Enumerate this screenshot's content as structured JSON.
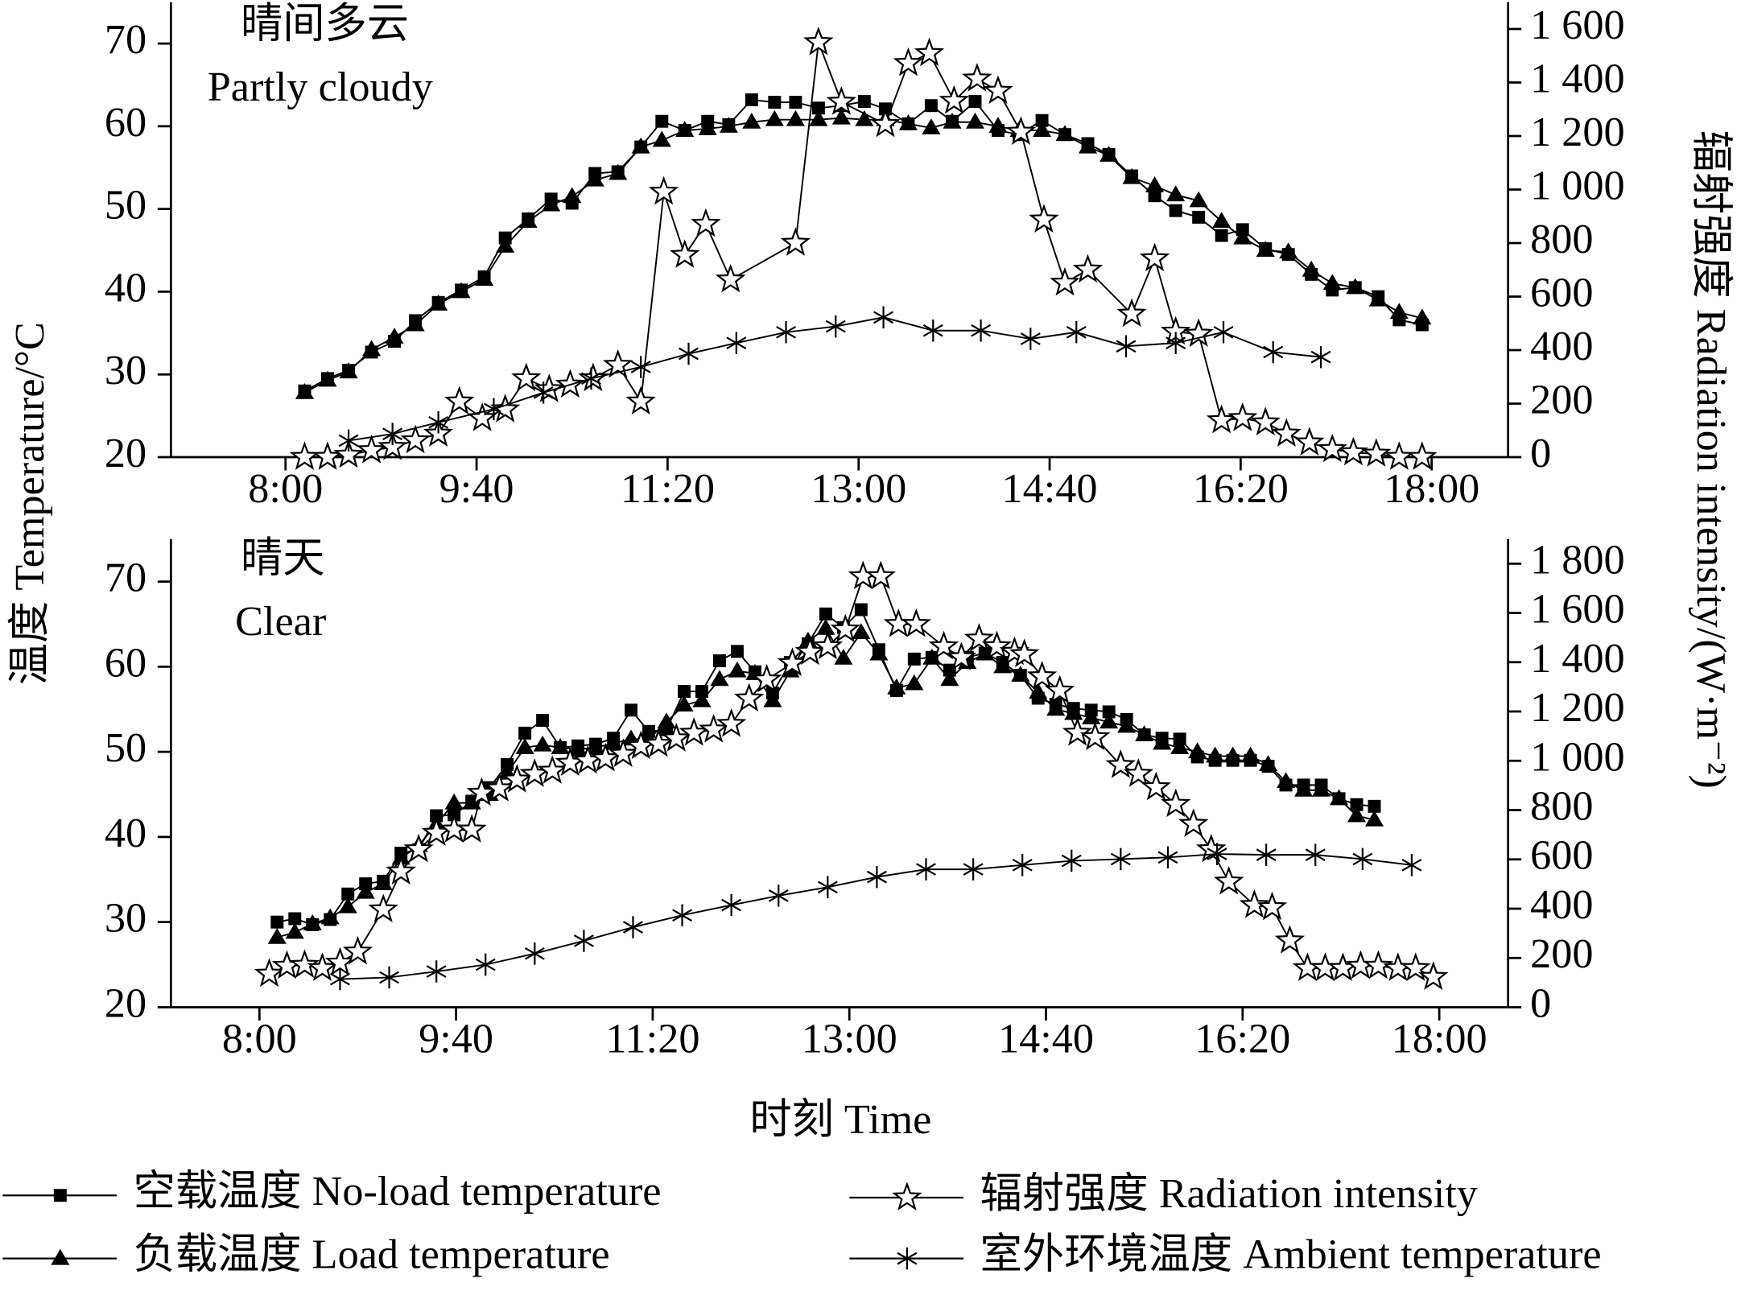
{
  "chart_data": [
    {
      "type": "line",
      "title": "晴间多云",
      "subtitle": "Partly cloudy",
      "y_label": "温度 Temperature/°C",
      "y2_label": "辐射强度 Radiation intensity/(W·m⁻²)",
      "xlim": [
        420,
        1120
      ],
      "xticks": [
        {
          "value": 480,
          "label": "8:00"
        },
        {
          "value": 580,
          "label": "9:40"
        },
        {
          "value": 680,
          "label": "11:20"
        },
        {
          "value": 780,
          "label": "13:00"
        },
        {
          "value": 880,
          "label": "14:40"
        },
        {
          "value": 980,
          "label": "16:20"
        },
        {
          "value": 1080,
          "label": "18:00"
        }
      ],
      "ylim": [
        20,
        75
      ],
      "yticks": [
        20,
        30,
        40,
        50,
        60,
        70
      ],
      "y2lim": [
        0,
        1700
      ],
      "y2ticks": [
        0,
        200,
        400,
        600,
        800,
        {
          "value": 1000,
          "label": "1 000"
        },
        {
          "value": 1200,
          "label": "1 200"
        },
        {
          "value": 1400,
          "label": "1 400"
        },
        {
          "value": 1600,
          "label": "1 600"
        }
      ],
      "series": [
        {
          "name": "空载温度 No-load temperature",
          "color": "#000000",
          "marker": "square",
          "x": [
            490,
            502,
            513,
            525,
            537,
            548,
            560,
            572,
            584,
            595,
            607,
            619,
            630,
            642,
            654,
            666,
            677,
            689,
            701,
            712,
            724,
            736,
            747,
            759,
            771,
            783,
            794,
            806,
            818,
            829,
            841,
            853,
            864,
            876,
            888,
            900,
            911,
            923,
            935,
            946,
            958,
            970,
            981,
            993,
            1005,
            1017,
            1028,
            1040,
            1052,
            1063,
            1075
          ],
          "values": [
            28,
            29.5,
            30.5,
            32.7,
            34,
            36.5,
            38.7,
            40.2,
            41.8,
            46.5,
            48.8,
            51.2,
            50.7,
            54.3,
            54.5,
            57.5,
            60.6,
            59.5,
            60.6,
            60.2,
            63.2,
            62.9,
            62.9,
            62.2,
            62.5,
            63,
            62.1,
            60.3,
            62.5,
            60.6,
            63,
            59.5,
            59,
            60.7,
            59,
            57.9,
            56.6,
            54,
            51.6,
            49.8,
            49,
            46.8,
            47.5,
            45.2,
            44.5,
            42.1,
            40.2,
            40.5,
            39.4,
            36.6,
            36
          ]
        },
        {
          "name": "负载温度 Load temperature",
          "color": "#000000",
          "marker": "triangle",
          "x": [
            490,
            502,
            513,
            525,
            537,
            548,
            560,
            572,
            584,
            595,
            607,
            619,
            630,
            642,
            654,
            666,
            677,
            689,
            701,
            712,
            724,
            736,
            747,
            759,
            771,
            783,
            794,
            806,
            818,
            829,
            841,
            853,
            864,
            876,
            888,
            900,
            911,
            923,
            935,
            946,
            958,
            970,
            981,
            993,
            1005,
            1017,
            1028,
            1040,
            1052,
            1063,
            1075
          ],
          "values": [
            27.8,
            29.3,
            30.3,
            33,
            34.5,
            36,
            38.5,
            40,
            41.5,
            45.5,
            48.5,
            50.5,
            51.5,
            53.5,
            54.3,
            57.5,
            58.3,
            59.5,
            59.7,
            60,
            60.5,
            60.8,
            60.8,
            60.8,
            61,
            60.8,
            60.8,
            60.3,
            59.8,
            60.5,
            60.5,
            60,
            59.5,
            59.5,
            59,
            57.5,
            56.5,
            53.8,
            52.8,
            51.7,
            51,
            48.5,
            46.5,
            45,
            44.8,
            42.6,
            41,
            40.5,
            39,
            37.5,
            36.8
          ]
        },
        {
          "name": "辐射强度 Radiation intensity",
          "color": "#000000",
          "marker": "star",
          "axis": "y2",
          "x": [
            490,
            502,
            513,
            525,
            536,
            548,
            560,
            571,
            583,
            595,
            606,
            618,
            629,
            641,
            654,
            666,
            678,
            689,
            700,
            713,
            747,
            759,
            771,
            794,
            806,
            817,
            830,
            842,
            853,
            865,
            877,
            888,
            900,
            923,
            935,
            946,
            958,
            970,
            981,
            993,
            1004,
            1016,
            1028,
            1039,
            1051,
            1063,
            1075
          ],
          "values": [
            0,
            0,
            8,
            25,
            37,
            62,
            87,
            207,
            145,
            178,
            294,
            253,
            270,
            294,
            344,
            207,
            991,
            755,
            871,
            663,
            800,
            1550,
            1327,
            1244,
            1472,
            1509,
            1331,
            1414,
            1368,
            1215,
            887,
            651,
            700,
            535,
            742,
            468,
            460,
            137,
            145,
            129,
            87,
            54,
            29,
            17,
            12,
            0,
            0
          ]
        },
        {
          "name": "室外环境温度 Ambient temperature",
          "color": "#000000",
          "marker": "asterisk",
          "x": [
            513,
            536,
            560,
            589,
            615,
            640,
            666,
            691,
            716,
            742,
            768,
            793,
            819,
            844,
            870,
            894,
            920,
            946,
            971,
            997,
            1022
          ],
          "values": [
            22,
            22.8,
            24.2,
            25.8,
            27.8,
            29.5,
            30.9,
            32.5,
            33.8,
            35.1,
            35.8,
            36.9,
            35.3,
            35.3,
            34.3,
            35.1,
            33.4,
            33.8,
            35.1,
            32.7,
            32.1
          ]
        }
      ]
    },
    {
      "type": "line",
      "title": "晴天",
      "subtitle": "Clear",
      "x_label": "时刻 Time",
      "xlim": [
        435,
        1115
      ],
      "xticks": [
        {
          "value": 480,
          "label": "8:00"
        },
        {
          "value": 580,
          "label": "9:40"
        },
        {
          "value": 680,
          "label": "11:20"
        },
        {
          "value": 780,
          "label": "13:00"
        },
        {
          "value": 880,
          "label": "14:40"
        },
        {
          "value": 980,
          "label": "16:20"
        },
        {
          "value": 1080,
          "label": "18:00"
        }
      ],
      "ylim": [
        20,
        75
      ],
      "yticks": [
        20,
        30,
        40,
        50,
        60,
        70
      ],
      "y2lim": [
        0,
        1900
      ],
      "y2ticks": [
        0,
        200,
        400,
        600,
        800,
        {
          "value": 1000,
          "label": "1 000"
        },
        {
          "value": 1200,
          "label": "1 200"
        },
        {
          "value": 1400,
          "label": "1 400"
        },
        {
          "value": 1600,
          "label": "1 600"
        },
        {
          "value": 1800,
          "label": "1 800"
        }
      ],
      "series": [
        {
          "name": "空载温度 No-load temperature",
          "color": "#000000",
          "marker": "square",
          "x": [
            489,
            498,
            507,
            516,
            525,
            534,
            543,
            552,
            561,
            570,
            579,
            588,
            597,
            606,
            615,
            624,
            633,
            642,
            651,
            660,
            669,
            678,
            687,
            696,
            705,
            714,
            723,
            732,
            741,
            750,
            759,
            768,
            777,
            786,
            795,
            804,
            813,
            822,
            831,
            840,
            849,
            858,
            867,
            876,
            885,
            894,
            903,
            912,
            921,
            930,
            939,
            948,
            957,
            966,
            975,
            984,
            993,
            1002,
            1011,
            1020,
            1029,
            1038,
            1047
          ],
          "values": [
            30,
            30.4,
            29.7,
            30.3,
            33.3,
            34.5,
            34.8,
            38.1,
            38.5,
            42.5,
            42.6,
            44.2,
            45.8,
            48.5,
            52.2,
            53.7,
            50.5,
            50.7,
            50.9,
            51.6,
            54.9,
            52.4,
            52.6,
            57.1,
            57.1,
            60.7,
            61.8,
            59.4,
            56.9,
            60.5,
            62.7,
            66.2,
            64.6,
            66.7,
            62,
            57.2,
            60.9,
            61.1,
            59.6,
            61.1,
            61.6,
            60.5,
            59,
            56.3,
            55.6,
            55.1,
            54.9,
            54.7,
            53.8,
            52,
            51.6,
            51.5,
            49.4,
            49,
            49,
            49,
            48.3,
            46.1,
            46.1,
            46.1,
            44.5,
            43.8,
            43.6
          ]
        },
        {
          "name": "负载温度 Load temperature",
          "color": "#000000",
          "marker": "triangle",
          "x": [
            489,
            498,
            507,
            516,
            525,
            534,
            543,
            552,
            561,
            570,
            579,
            588,
            597,
            606,
            615,
            624,
            633,
            642,
            651,
            660,
            669,
            678,
            687,
            696,
            705,
            714,
            723,
            732,
            741,
            750,
            759,
            768,
            777,
            786,
            795,
            804,
            813,
            822,
            831,
            840,
            849,
            858,
            867,
            876,
            885,
            894,
            903,
            912,
            921,
            930,
            939,
            948,
            957,
            966,
            975,
            984,
            993,
            1002,
            1011,
            1020,
            1029,
            1038,
            1047
          ],
          "values": [
            28.2,
            28.8,
            29.8,
            30.5,
            31.8,
            33.5,
            34.5,
            37.5,
            39,
            41.5,
            44,
            44,
            45,
            47.5,
            50.5,
            50.8,
            50.5,
            50.3,
            50.5,
            51,
            51.5,
            51.5,
            53.5,
            55.5,
            56,
            58.5,
            59.5,
            59.2,
            56,
            59.5,
            63,
            64.5,
            61,
            64,
            61.5,
            57.5,
            58,
            61,
            58.5,
            60.5,
            61.5,
            60,
            59,
            57,
            55,
            54.5,
            54,
            53.5,
            53,
            52,
            51,
            50.5,
            50,
            49.5,
            49.5,
            49.5,
            48.5,
            46.5,
            45.5,
            45.5,
            44.5,
            42.5,
            42
          ]
        },
        {
          "name": "辐射强度 Radiation intensity",
          "color": "#000000",
          "marker": "star",
          "axis": "y2",
          "x": [
            485,
            494,
            503,
            512,
            521,
            530,
            543,
            552,
            561,
            570,
            579,
            588,
            593,
            602,
            611,
            620,
            629,
            638,
            647,
            656,
            665,
            674,
            683,
            692,
            701,
            711,
            720,
            729,
            738,
            751,
            760,
            769,
            778,
            787,
            796,
            805,
            814,
            828,
            837,
            846,
            855,
            864,
            869,
            878,
            887,
            896,
            905,
            918,
            927,
            936,
            946,
            955,
            964,
            973,
            986,
            995,
            1004,
            1013,
            1022,
            1031,
            1040,
            1049,
            1059,
            1068,
            1077
          ],
          "values": [
            135,
            167,
            171,
            158,
            180,
            225,
            396,
            550,
            640,
            707,
            720,
            720,
            869,
            887,
            923,
            946,
            959,
            991,
            1000,
            1009,
            1027,
            1059,
            1068,
            1090,
            1113,
            1126,
            1149,
            1252,
            1329,
            1396,
            1441,
            1464,
            1532,
            1748,
            1748,
            1554,
            1554,
            1464,
            1419,
            1495,
            1464,
            1441,
            1432,
            1342,
            1284,
            1113,
            1095,
            982,
            946,
            892,
            824,
            743,
            640,
            509,
            414,
            405,
            270,
            158,
            158,
            158,
            167,
            167,
            158,
            158,
            122
          ]
        },
        {
          "name": "室外环境温度 Ambient temperature",
          "color": "#000000",
          "marker": "asterisk",
          "x": [
            521,
            546,
            570,
            595,
            620,
            645,
            670,
            695,
            720,
            744,
            769,
            794,
            819,
            843,
            868,
            893,
            918,
            942,
            967,
            992,
            1017,
            1041,
            1066
          ],
          "values": [
            23.3,
            23.5,
            24.2,
            25,
            26.3,
            27.8,
            29.4,
            30.8,
            32,
            33.1,
            34.1,
            35.3,
            36.2,
            36.2,
            36.7,
            37.2,
            37.4,
            37.6,
            38,
            37.9,
            37.9,
            37.4,
            36.7
          ]
        }
      ]
    }
  ]
}
